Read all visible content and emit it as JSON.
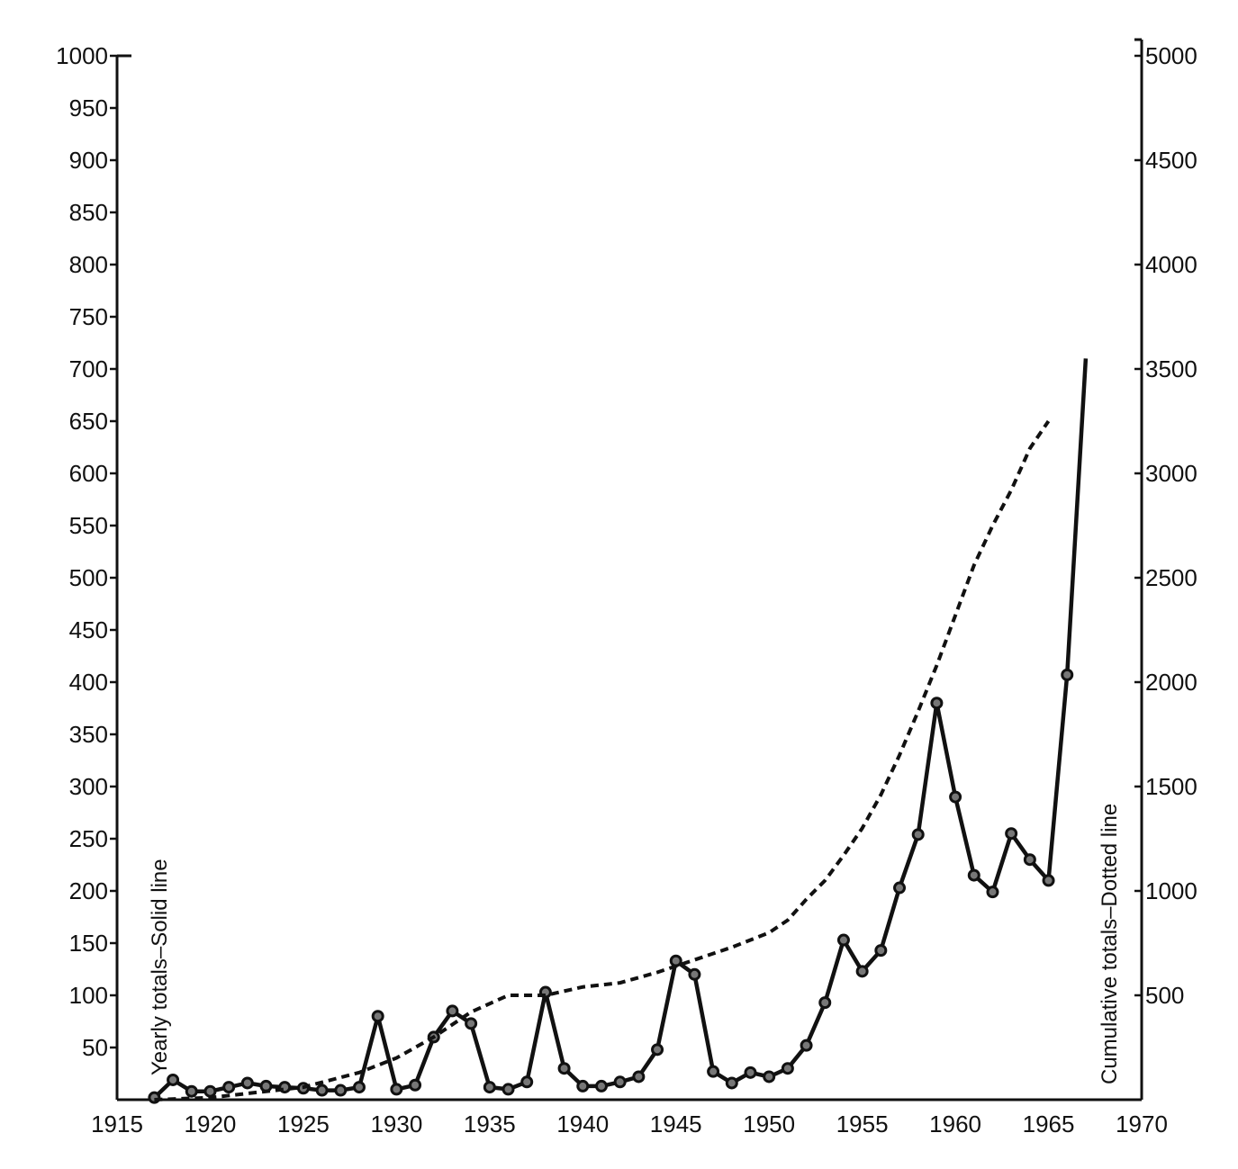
{
  "chart_data": {
    "type": "line",
    "x_ticks": [
      "1915",
      "1920",
      "1925",
      "1930",
      "1935",
      "1940",
      "1945",
      "1950",
      "1955",
      "1960",
      "1965",
      "1970"
    ],
    "y_left_ticks": [
      "50",
      "100",
      "150",
      "200",
      "250",
      "300",
      "350",
      "400",
      "450",
      "500",
      "550",
      "600",
      "650",
      "700",
      "750",
      "800",
      "850",
      "900",
      "950",
      "1000"
    ],
    "y_right_ticks": [
      "500",
      "1000",
      "1500",
      "2000",
      "2500",
      "3000",
      "3500",
      "4000",
      "4500",
      "5000"
    ],
    "y_left_label": "Yearly totals–Solid line",
    "y_right_label": "Cumulative totals–Dotted line",
    "xlim": [
      1915,
      1970
    ],
    "y_left_lim": [
      0,
      1000
    ],
    "y_right_lim": [
      0,
      5000
    ],
    "series": [
      {
        "name": "Yearly totals",
        "axis": "left",
        "style": "solid",
        "x": [
          1917,
          1918,
          1919,
          1920,
          1921,
          1922,
          1923,
          1924,
          1925,
          1926,
          1927,
          1928,
          1929,
          1930,
          1931,
          1932,
          1933,
          1934,
          1935,
          1936,
          1937,
          1938,
          1939,
          1940,
          1941,
          1942,
          1943,
          1944,
          1945,
          1946,
          1947,
          1948,
          1949,
          1950,
          1951,
          1952,
          1953,
          1954,
          1955,
          1956,
          1957,
          1958,
          1959,
          1960,
          1961,
          1962,
          1963,
          1964,
          1965,
          1966,
          1967
        ],
        "y": [
          2,
          19,
          8,
          8,
          12,
          16,
          13,
          12,
          11,
          9,
          9,
          12,
          80,
          10,
          14,
          60,
          85,
          73,
          12,
          10,
          17,
          103,
          30,
          13,
          13,
          17,
          22,
          48,
          133,
          120,
          27,
          16,
          26,
          22,
          30,
          52,
          93,
          153,
          123,
          143,
          203,
          254,
          380,
          290,
          215,
          199,
          255,
          230,
          210,
          407,
          710
        ]
      },
      {
        "name": "Cumulative totals",
        "axis": "right",
        "style": "dotted",
        "x": [
          1917,
          1920,
          1925,
          1928,
          1930,
          1932,
          1934,
          1936,
          1938,
          1940,
          1942,
          1944,
          1946,
          1948,
          1950,
          1951,
          1952,
          1953,
          1954,
          1955,
          1956,
          1957,
          1958,
          1959,
          1960,
          1961,
          1962,
          1963,
          1964,
          1965
        ],
        "y": [
          0,
          10,
          60,
          130,
          200,
          300,
          420,
          500,
          500,
          540,
          560,
          610,
          670,
          730,
          800,
          860,
          960,
          1050,
          1170,
          1300,
          1460,
          1650,
          1860,
          2080,
          2320,
          2560,
          2750,
          2920,
          3120,
          3250
        ]
      }
    ]
  }
}
